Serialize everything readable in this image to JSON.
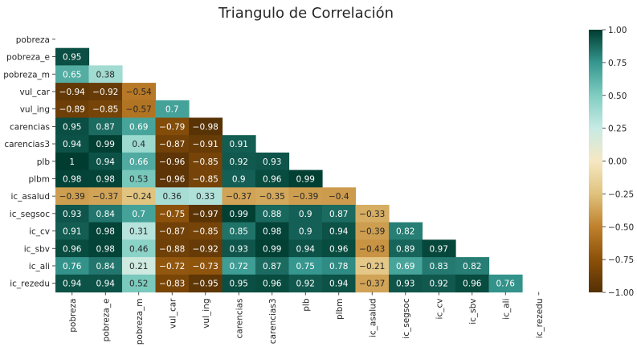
{
  "chart_data": {
    "type": "heatmap",
    "title": "Triangulo de Correlación",
    "variables": [
      "pobreza",
      "pobreza_e",
      "pobreza_m",
      "vul_car",
      "vul_ing",
      "carencias",
      "carencias3",
      "plb",
      "plbm",
      "ic_asalud",
      "ic_segsoc",
      "ic_cv",
      "ic_sbv",
      "ic_ali",
      "ic_rezedu"
    ],
    "matrix": [
      [],
      [
        0.95
      ],
      [
        0.65,
        0.38
      ],
      [
        -0.94,
        -0.92,
        -0.54
      ],
      [
        -0.89,
        -0.85,
        -0.57,
        0.7
      ],
      [
        0.95,
        0.87,
        0.69,
        -0.79,
        -0.98
      ],
      [
        0.94,
        0.99,
        0.4,
        -0.87,
        -0.91,
        0.91
      ],
      [
        1,
        0.94,
        0.66,
        -0.96,
        -0.85,
        0.92,
        0.93
      ],
      [
        0.98,
        0.98,
        0.53,
        -0.96,
        -0.85,
        0.9,
        0.96,
        0.99
      ],
      [
        -0.39,
        -0.37,
        -0.24,
        0.36,
        0.33,
        -0.37,
        -0.35,
        -0.39,
        -0.4
      ],
      [
        0.93,
        0.84,
        0.7,
        -0.75,
        -0.97,
        0.99,
        0.88,
        0.9,
        0.87,
        -0.33
      ],
      [
        0.91,
        0.98,
        0.31,
        -0.87,
        -0.85,
        0.85,
        0.98,
        0.9,
        0.94,
        -0.39,
        0.82
      ],
      [
        0.96,
        0.98,
        0.46,
        -0.88,
        -0.92,
        0.93,
        0.99,
        0.94,
        0.96,
        -0.43,
        0.89,
        0.97
      ],
      [
        0.76,
        0.84,
        0.21,
        -0.72,
        -0.73,
        0.72,
        0.87,
        0.75,
        0.78,
        -0.21,
        0.69,
        0.83,
        0.82
      ],
      [
        0.94,
        0.94,
        0.52,
        -0.83,
        -0.95,
        0.95,
        0.96,
        0.92,
        0.94,
        -0.37,
        0.93,
        0.92,
        0.96,
        0.76
      ]
    ],
    "colorbar": {
      "colormap": "BrBG",
      "range": [
        -1,
        1
      ],
      "ticks": [
        "1.00",
        "0.75",
        "0.50",
        "0.25",
        "0.00",
        "−0.25",
        "−0.50",
        "−0.75",
        "−1.00"
      ]
    }
  }
}
